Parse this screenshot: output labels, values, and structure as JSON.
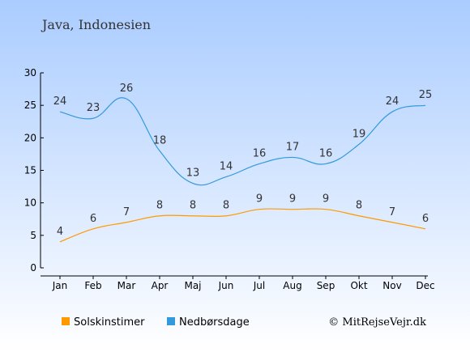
{
  "chart_data": {
    "type": "line",
    "title": "Java, Indonesien",
    "categories": [
      "Jan",
      "Feb",
      "Mar",
      "Apr",
      "Maj",
      "Jun",
      "Jul",
      "Aug",
      "Sep",
      "Okt",
      "Nov",
      "Dec"
    ],
    "ylim": [
      0,
      30
    ],
    "yticks": [
      "0",
      "5",
      "10",
      "15",
      "20",
      "25",
      "30"
    ],
    "series": [
      {
        "name": "Solskinstimer",
        "color": "#FF9900",
        "values": [
          4,
          6,
          7,
          8,
          8,
          8,
          9,
          9,
          9,
          8,
          7,
          6
        ],
        "labels": [
          "4",
          "6",
          "7",
          "8",
          "8",
          "8",
          "9",
          "9",
          "9",
          "8",
          "7",
          "6"
        ]
      },
      {
        "name": "Nedbørsdage",
        "color": "#3399DD",
        "values": [
          24,
          23,
          26,
          18,
          13,
          14,
          16,
          17,
          16,
          19,
          24,
          25
        ],
        "labels": [
          "24",
          "23",
          "26",
          "18",
          "13",
          "14",
          "16",
          "17",
          "16",
          "19",
          "24",
          "25"
        ]
      }
    ],
    "grid": false,
    "legend_position": "bottom-left",
    "credit": "© MitRejseVejr.dk",
    "background_gradient": [
      "#AACCFF",
      "#FFFFFF"
    ]
  }
}
